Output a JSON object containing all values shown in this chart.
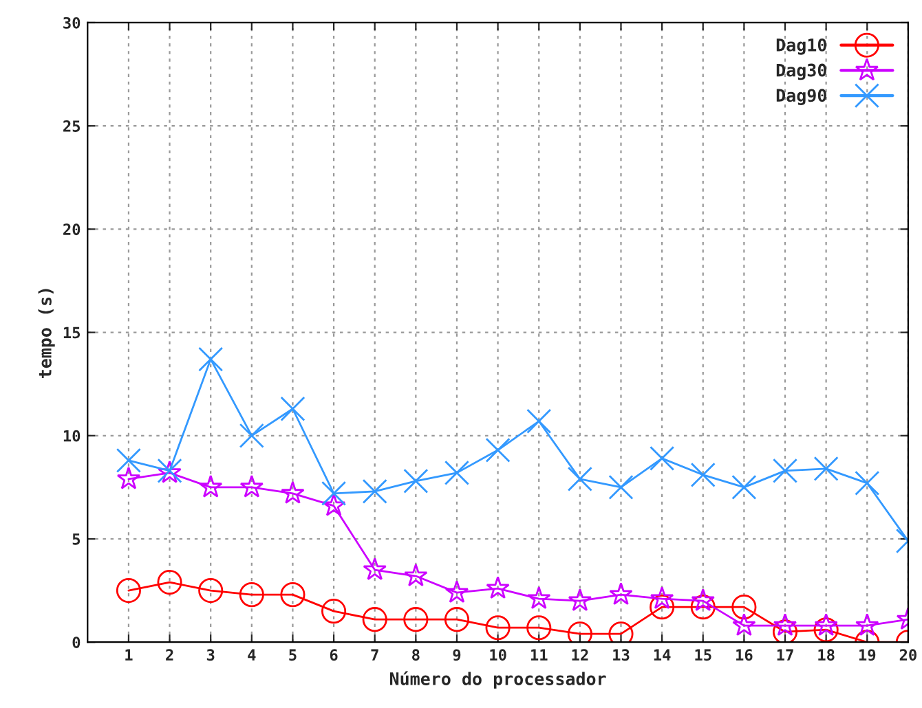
{
  "chart_data": {
    "type": "line",
    "xlabel": "Número do processador",
    "ylabel": "tempo (s)",
    "x": [
      1,
      2,
      3,
      4,
      5,
      6,
      7,
      8,
      9,
      10,
      11,
      12,
      13,
      14,
      15,
      16,
      17,
      18,
      19,
      20
    ],
    "xlim": [
      0,
      20
    ],
    "xticks": [
      1,
      2,
      3,
      4,
      5,
      6,
      7,
      8,
      9,
      10,
      11,
      12,
      13,
      14,
      15,
      16,
      17,
      18,
      19,
      20
    ],
    "ylim": [
      0,
      30
    ],
    "yticks": [
      0,
      5,
      10,
      15,
      20,
      25,
      30
    ],
    "grid": true,
    "legend": "top right",
    "line_style": "solid",
    "series": [
      {
        "name": "Dag10",
        "color": "#ff0000",
        "marker": "circle",
        "values": [
          2.5,
          2.9,
          2.5,
          2.3,
          2.3,
          1.5,
          1.1,
          1.1,
          1.1,
          0.7,
          0.7,
          0.4,
          0.4,
          1.7,
          1.7,
          1.7,
          0.5,
          0.6,
          0,
          0
        ]
      },
      {
        "name": "Dag30",
        "color": "#cc00ff",
        "marker": "star",
        "values": [
          7.9,
          8.2,
          7.5,
          7.5,
          7.2,
          6.6,
          3.5,
          3.2,
          2.4,
          2.6,
          2.1,
          2.0,
          2.3,
          2.1,
          2.0,
          0.8,
          0.8,
          0.8,
          0.8,
          1.1
        ]
      },
      {
        "name": "Dag90",
        "color": "#3399ff",
        "marker": "cross",
        "values": [
          8.8,
          8.3,
          13.7,
          10.0,
          11.3,
          7.2,
          7.3,
          7.8,
          8.2,
          9.3,
          10.7,
          7.9,
          7.5,
          8.9,
          8.1,
          7.5,
          8.3,
          8.4,
          7.7,
          4.9
        ]
      }
    ]
  }
}
